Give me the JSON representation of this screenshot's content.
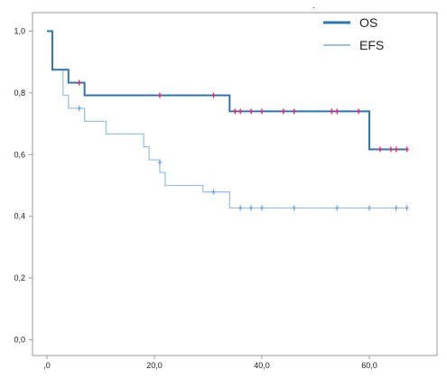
{
  "chart_data": {
    "type": "line",
    "step": true,
    "xlim": [
      0,
      72
    ],
    "ylim": [
      0,
      1.05
    ],
    "x_ticks": [
      0,
      20,
      40,
      60
    ],
    "x_tick_labels": [
      ",0",
      "20,0",
      "40,0",
      "60,0"
    ],
    "y_ticks": [
      0,
      0.2,
      0.4,
      0.6,
      0.8,
      1.0
    ],
    "y_tick_labels": [
      "0,0",
      "0,2",
      "0,4",
      "0,6",
      "0,8",
      "1,0"
    ],
    "legend_position": "top-right",
    "top_mark": ".",
    "series": [
      {
        "name": "EFS",
        "color": "#9cc3e6",
        "censor_color": "#6fa8dc",
        "steps": [
          [
            0,
            1.0
          ],
          [
            1,
            0.875
          ],
          [
            3,
            0.792
          ],
          [
            4,
            0.75
          ],
          [
            7,
            0.708
          ],
          [
            11,
            0.667
          ],
          [
            18,
            0.625
          ],
          [
            19,
            0.583
          ],
          [
            21,
            0.542
          ],
          [
            22,
            0.5
          ],
          [
            29,
            0.479
          ],
          [
            34,
            0.427
          ],
          [
            67,
            0.427
          ]
        ],
        "censored": [
          [
            6,
            0.75
          ],
          [
            21,
            0.575
          ],
          [
            31,
            0.479
          ],
          [
            36,
            0.427
          ],
          [
            38,
            0.427
          ],
          [
            40,
            0.427
          ],
          [
            46,
            0.427
          ],
          [
            54,
            0.427
          ],
          [
            60,
            0.427
          ],
          [
            65,
            0.427
          ],
          [
            67,
            0.427
          ]
        ]
      },
      {
        "name": "OS",
        "color": "#2e75b6",
        "censor_color": "#e0245e",
        "steps": [
          [
            0,
            1.0
          ],
          [
            1,
            0.875
          ],
          [
            4,
            0.833
          ],
          [
            7,
            0.792
          ],
          [
            34,
            0.74
          ],
          [
            60,
            0.617
          ],
          [
            67,
            0.617
          ]
        ],
        "censored": [
          [
            6,
            0.833
          ],
          [
            21,
            0.792
          ],
          [
            31,
            0.792
          ],
          [
            35,
            0.74
          ],
          [
            36,
            0.74
          ],
          [
            38,
            0.74
          ],
          [
            40,
            0.74
          ],
          [
            44,
            0.74
          ],
          [
            46,
            0.74
          ],
          [
            53,
            0.74
          ],
          [
            54,
            0.74
          ],
          [
            58,
            0.74
          ],
          [
            62,
            0.617
          ],
          [
            64,
            0.617
          ],
          [
            65,
            0.617
          ],
          [
            67,
            0.617
          ]
        ]
      }
    ]
  }
}
